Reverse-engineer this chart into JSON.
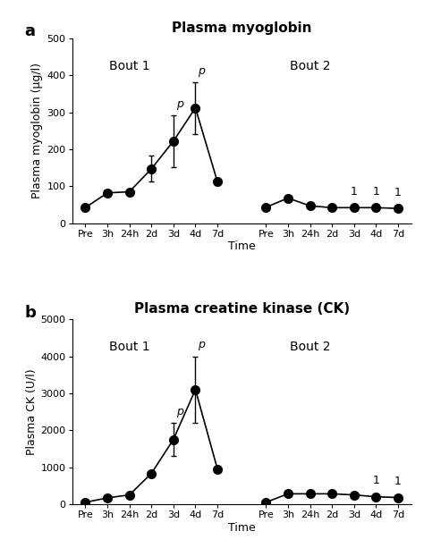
{
  "panel_a": {
    "title": "Plasma myoglobin",
    "ylabel": "Plasma myoglobin (μg/l)",
    "xlabel": "Time",
    "ylim": [
      0,
      500
    ],
    "yticks": [
      0,
      100,
      200,
      300,
      400,
      500
    ],
    "bout1_label": "Bout 1",
    "bout2_label": "Bout 2",
    "xtick_labels": [
      "Pre",
      "3h",
      "24h",
      "2d",
      "3d",
      "4d",
      "7d",
      "Pre",
      "3h",
      "24h",
      "2d",
      "3d",
      "4d",
      "7d"
    ],
    "bout1_values": [
      42,
      82,
      85,
      147,
      222,
      312,
      112
    ],
    "bout1_errors": [
      0,
      0,
      0,
      35,
      70,
      70,
      0
    ],
    "bout2_values": [
      43,
      68,
      47,
      42,
      42,
      42,
      40
    ],
    "bout2_errors": [
      0,
      0,
      0,
      0,
      0,
      0,
      0
    ],
    "p_annotations_b1": [
      4,
      5
    ],
    "sig1_annotations_b2": [
      4,
      5,
      6
    ],
    "panel_label": "a"
  },
  "panel_b": {
    "title": "Plasma creatine kinase (CK)",
    "ylabel": "Plasma CK (U/l)",
    "xlabel": "Time",
    "ylim": [
      0,
      5000
    ],
    "yticks": [
      0,
      1000,
      2000,
      3000,
      4000,
      5000
    ],
    "bout1_label": "Bout 1",
    "bout2_label": "Bout 2",
    "xtick_labels": [
      "Pre",
      "3h",
      "24h",
      "2d",
      "3d",
      "4d",
      "7d",
      "Pre",
      "3h",
      "24h",
      "2d",
      "3d",
      "4d",
      "7d"
    ],
    "bout1_values": [
      50,
      170,
      250,
      830,
      1750,
      3100,
      950
    ],
    "bout1_errors": [
      0,
      0,
      0,
      0,
      450,
      900,
      0
    ],
    "bout2_values": [
      50,
      280,
      280,
      280,
      250,
      200,
      180
    ],
    "bout2_errors": [
      0,
      0,
      0,
      0,
      0,
      0,
      0
    ],
    "p_annotations_b1": [
      4,
      5
    ],
    "sig1_annotations_b2": [
      5,
      6
    ],
    "panel_label": "b"
  },
  "marker_color": "#000000",
  "line_color": "#000000",
  "marker_size": 7,
  "line_width": 1.2,
  "title_fontsize": 11,
  "label_fontsize": 9,
  "tick_fontsize": 8,
  "annotation_fontsize": 9,
  "panel_label_fontsize": 13,
  "bout_label_fontsize": 10
}
